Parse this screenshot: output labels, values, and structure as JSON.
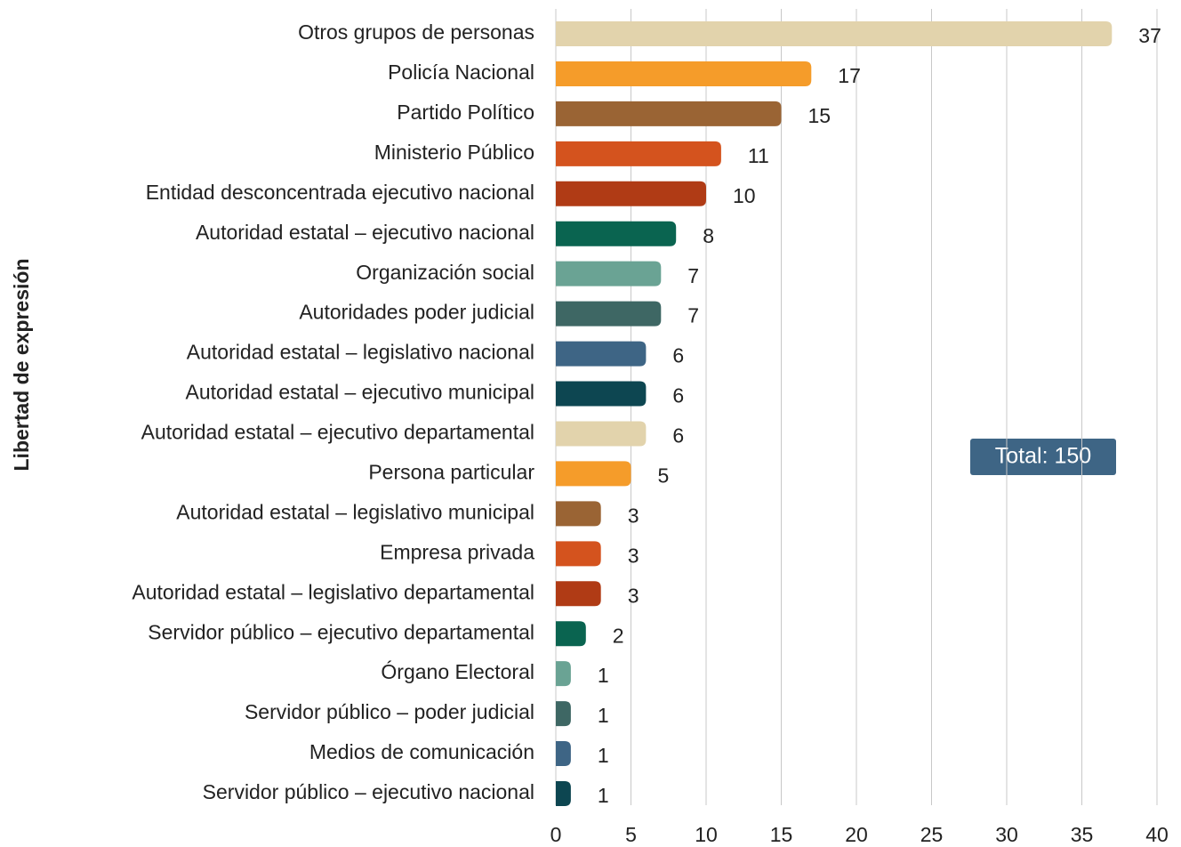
{
  "chart_data": {
    "type": "bar",
    "orientation": "horizontal",
    "y_axis_label": "Libertad de expresión",
    "annotation": "Total: 150",
    "categories": [
      "Otros grupos de personas",
      "Policía Nacional",
      "Partido Político",
      "Ministerio Público",
      "Entidad desconcentrada ejecutivo nacional",
      "Autoridad estatal – ejecutivo nacional",
      "Organización social",
      "Autoridades poder judicial",
      "Autoridad estatal – legislativo nacional",
      "Autoridad estatal – ejecutivo municipal",
      "Autoridad estatal – ejecutivo departamental",
      "Persona particular",
      "Autoridad estatal – legislativo municipal",
      "Empresa privada",
      "Autoridad estatal – legislativo departamental",
      "Servidor público – ejecutivo departamental",
      "Órgano Electoral",
      "Servidor público – poder judicial",
      "Medios de comunicación",
      "Servidor público – ejecutivo nacional"
    ],
    "values": [
      37,
      17,
      15,
      11,
      10,
      8,
      7,
      7,
      6,
      6,
      6,
      5,
      3,
      3,
      3,
      2,
      1,
      1,
      1,
      1
    ],
    "colors": [
      "#e2d3ac",
      "#f59c2a",
      "#9a6434",
      "#d4531e",
      "#b03b15",
      "#0a6450",
      "#6aa394",
      "#3e6764",
      "#3e6585",
      "#0d4651",
      "#e2d3ac",
      "#f59c2a",
      "#9a6434",
      "#d4531e",
      "#b03b15",
      "#0a6450",
      "#6aa394",
      "#3e6764",
      "#3e6585",
      "#0d4651"
    ],
    "xlim": [
      0,
      40
    ],
    "xticks": [
      0,
      5,
      10,
      15,
      20,
      25,
      30,
      35,
      40
    ],
    "grid": true
  }
}
